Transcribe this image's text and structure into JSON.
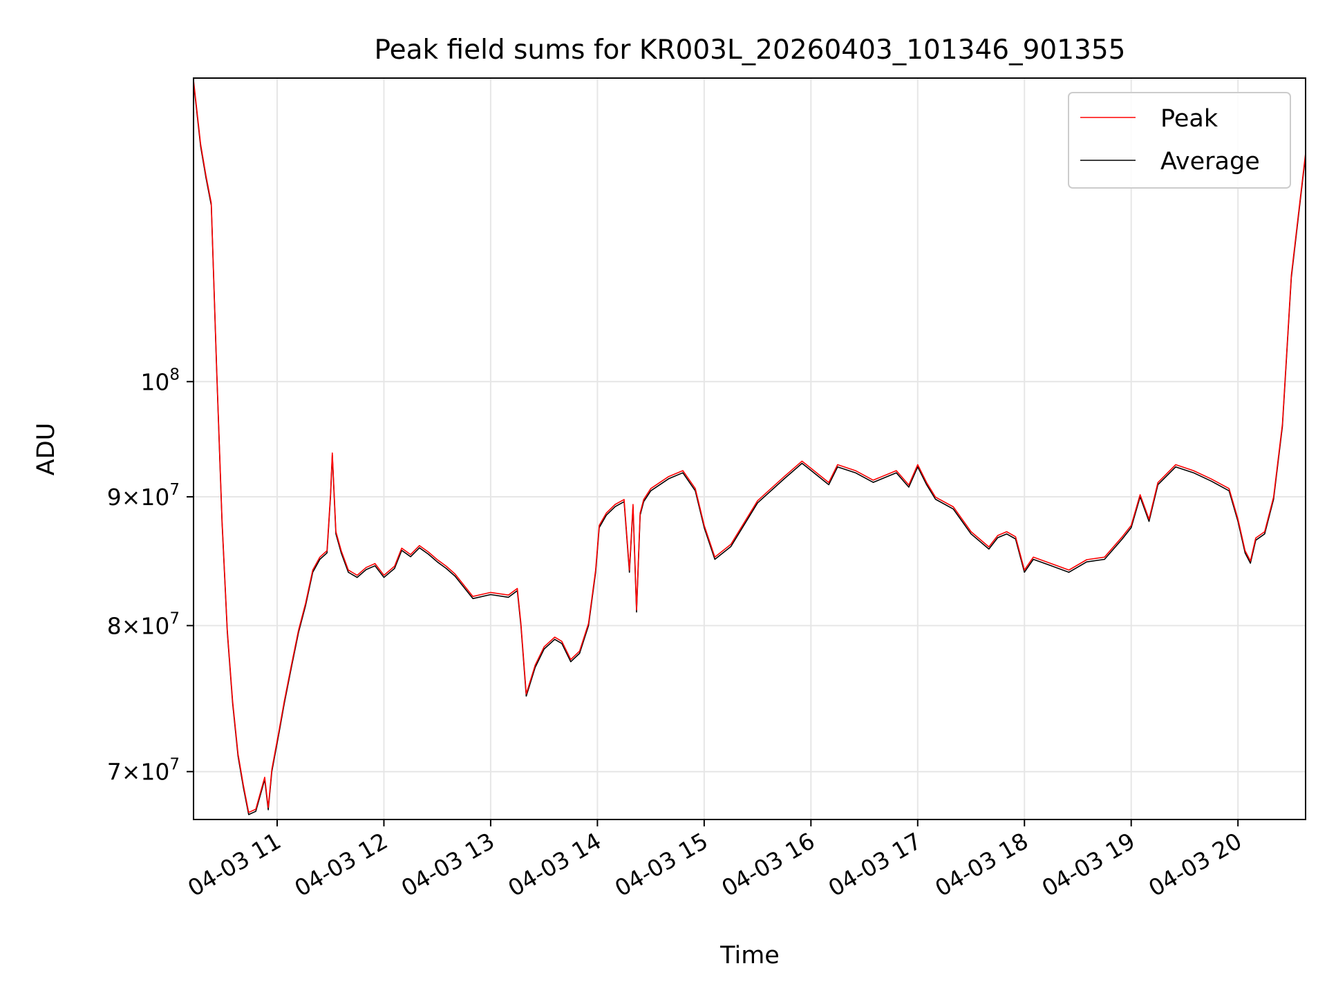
{
  "chart_data": {
    "type": "line",
    "title": "Peak field sums for KR003L_20260403_101346_901355",
    "xlabel": "Time",
    "ylabel": "ADU",
    "y_scale": "log",
    "grid": true,
    "legend_position": "top-right",
    "xlim": [
      "2026-04-03 10:13",
      "2026-04-03 20:38"
    ],
    "ylim": [
      67000000,
      132000000
    ],
    "x_ticks": [
      {
        "value": "2026-04-03 11:00",
        "label": "04-03 11"
      },
      {
        "value": "2026-04-03 12:00",
        "label": "04-03 12"
      },
      {
        "value": "2026-04-03 13:00",
        "label": "04-03 13"
      },
      {
        "value": "2026-04-03 14:00",
        "label": "04-03 14"
      },
      {
        "value": "2026-04-03 15:00",
        "label": "04-03 15"
      },
      {
        "value": "2026-04-03 16:00",
        "label": "04-03 16"
      },
      {
        "value": "2026-04-03 17:00",
        "label": "04-03 17"
      },
      {
        "value": "2026-04-03 18:00",
        "label": "04-03 18"
      },
      {
        "value": "2026-04-03 19:00",
        "label": "04-03 19"
      },
      {
        "value": "2026-04-03 20:00",
        "label": "04-03 20"
      }
    ],
    "y_ticks": [
      {
        "value": 70000000,
        "mant": "7",
        "exp": "7"
      },
      {
        "value": 80000000,
        "mant": "8",
        "exp": "7"
      },
      {
        "value": 90000000,
        "mant": "9",
        "exp": "7"
      },
      {
        "value": 100000000,
        "mant": "",
        "exp": "8"
      }
    ],
    "series": [
      {
        "name": "Peak",
        "color": "#ff0000",
        "offset_factor": 1.002
      },
      {
        "name": "Average",
        "color": "#000000",
        "offset_factor": 1.0
      }
    ],
    "x": [
      "2026-04-03 10:13",
      "2026-04-03 10:17",
      "2026-04-03 10:20",
      "2026-04-03 10:23",
      "2026-04-03 10:26",
      "2026-04-03 10:29",
      "2026-04-03 10:32",
      "2026-04-03 10:35",
      "2026-04-03 10:38",
      "2026-04-03 10:41",
      "2026-04-03 10:44",
      "2026-04-03 10:48",
      "2026-04-03 10:53",
      "2026-04-03 10:55",
      "2026-04-03 10:57",
      "2026-04-03 11:01",
      "2026-04-03 11:04",
      "2026-04-03 11:08",
      "2026-04-03 11:12",
      "2026-04-03 11:16",
      "2026-04-03 11:20",
      "2026-04-03 11:24",
      "2026-04-03 11:28",
      "2026-04-03 11:30",
      "2026-04-03 11:31",
      "2026-04-03 11:33",
      "2026-04-03 11:36",
      "2026-04-03 11:40",
      "2026-04-03 11:45",
      "2026-04-03 11:50",
      "2026-04-03 11:55",
      "2026-04-03 12:00",
      "2026-04-03 12:06",
      "2026-04-03 12:10",
      "2026-04-03 12:15",
      "2026-04-03 12:20",
      "2026-04-03 12:25",
      "2026-04-03 12:30",
      "2026-04-03 12:35",
      "2026-04-03 12:40",
      "2026-04-03 12:50",
      "2026-04-03 13:00",
      "2026-04-03 13:10",
      "2026-04-03 13:15",
      "2026-04-03 13:17",
      "2026-04-03 13:20",
      "2026-04-03 13:25",
      "2026-04-03 13:30",
      "2026-04-03 13:36",
      "2026-04-03 13:40",
      "2026-04-03 13:45",
      "2026-04-03 13:50",
      "2026-04-03 13:55",
      "2026-04-03 13:59",
      "2026-04-03 14:01",
      "2026-04-03 14:05",
      "2026-04-03 14:10",
      "2026-04-03 14:15",
      "2026-04-03 14:18",
      "2026-04-03 14:20",
      "2026-04-03 14:22",
      "2026-04-03 14:24",
      "2026-04-03 14:26",
      "2026-04-03 14:30",
      "2026-04-03 14:40",
      "2026-04-03 14:48",
      "2026-04-03 14:55",
      "2026-04-03 15:00",
      "2026-04-03 15:06",
      "2026-04-03 15:15",
      "2026-04-03 15:30",
      "2026-04-03 15:45",
      "2026-04-03 15:55",
      "2026-04-03 16:00",
      "2026-04-03 16:10",
      "2026-04-03 16:15",
      "2026-04-03 16:25",
      "2026-04-03 16:35",
      "2026-04-03 16:48",
      "2026-04-03 16:55",
      "2026-04-03 17:00",
      "2026-04-03 17:05",
      "2026-04-03 17:10",
      "2026-04-03 17:20",
      "2026-04-03 17:30",
      "2026-04-03 17:40",
      "2026-04-03 17:45",
      "2026-04-03 17:50",
      "2026-04-03 17:55",
      "2026-04-03 18:00",
      "2026-04-03 18:05",
      "2026-04-03 18:15",
      "2026-04-03 18:25",
      "2026-04-03 18:35",
      "2026-04-03 18:45",
      "2026-04-03 18:55",
      "2026-04-03 19:00",
      "2026-04-03 19:05",
      "2026-04-03 19:10",
      "2026-04-03 19:15",
      "2026-04-03 19:25",
      "2026-04-03 19:35",
      "2026-04-03 19:45",
      "2026-04-03 19:55",
      "2026-04-03 20:00",
      "2026-04-03 20:04",
      "2026-04-03 20:07",
      "2026-04-03 20:10",
      "2026-04-03 20:15",
      "2026-04-03 20:20",
      "2026-04-03 20:25",
      "2026-04-03 20:30",
      "2026-04-03 20:35",
      "2026-04-03 20:38"
    ],
    "values": [
      131500000,
      124000000,
      120500000,
      117500000,
      101000000,
      88000000,
      79500000,
      74500000,
      71000000,
      69000000,
      67300000,
      67500000,
      69500000,
      67600000,
      70000000,
      72500000,
      74500000,
      77000000,
      79500000,
      81500000,
      84000000,
      85000000,
      85500000,
      90000000,
      93500000,
      87000000,
      85500000,
      84000000,
      83600000,
      84200000,
      84500000,
      83600000,
      84300000,
      85700000,
      85200000,
      85900000,
      85400000,
      84800000,
      84300000,
      83700000,
      82000000,
      82300000,
      82100000,
      82600000,
      80000000,
      75000000,
      77000000,
      78300000,
      79000000,
      78700000,
      77400000,
      78000000,
      80000000,
      84000000,
      87500000,
      88500000,
      89200000,
      89600000,
      84000000,
      89200000,
      81000000,
      88500000,
      89600000,
      90500000,
      91500000,
      92000000,
      90500000,
      87500000,
      85000000,
      86000000,
      89500000,
      91500000,
      92800000,
      92200000,
      91000000,
      92500000,
      92000000,
      91200000,
      92000000,
      90800000,
      92500000,
      91000000,
      89800000,
      89000000,
      87000000,
      85800000,
      86700000,
      87000000,
      86600000,
      84000000,
      85000000,
      84500000,
      84000000,
      84800000,
      85000000,
      86600000,
      87500000,
      90000000,
      88000000,
      91000000,
      92500000,
      92000000,
      91300000,
      90500000,
      88000000,
      85500000,
      84700000,
      86500000,
      87000000,
      89800000,
      96000000,
      110000000,
      118000000,
      123000000
    ]
  }
}
